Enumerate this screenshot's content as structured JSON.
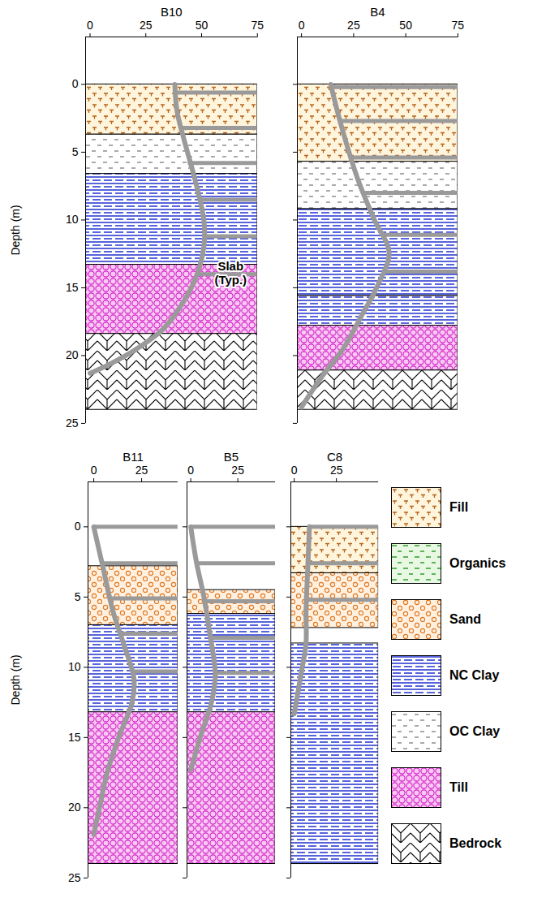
{
  "chart_data": [
    {
      "type": "borehole",
      "title": "B10",
      "xlim": [
        -2,
        75
      ],
      "xticks": [
        0,
        25,
        50,
        75
      ],
      "ylim": [
        -3.5,
        25
      ],
      "yticks": [
        0,
        5,
        10,
        15,
        20,
        25
      ],
      "ylabel": "Depth (m)",
      "layers": [
        {
          "soil": "Fill",
          "top": 0,
          "bottom": 3.7
        },
        {
          "soil": "OC Clay",
          "top": 3.7,
          "bottom": 6.6
        },
        {
          "soil": "NC Clay",
          "top": 6.6,
          "bottom": 13.3
        },
        {
          "soil": "Till",
          "top": 13.3,
          "bottom": 18.4
        },
        {
          "soil": "Bedrock",
          "top": 18.4,
          "bottom": 24
        }
      ],
      "curve": {
        "x": [
          38,
          39,
          42,
          47,
          51,
          51,
          48,
          42,
          33,
          20,
          8,
          0
        ],
        "depth": [
          0,
          2,
          4,
          7,
          10,
          12,
          14,
          16,
          18,
          19.6,
          20.7,
          21.3
        ]
      },
      "slabs": [
        {
          "depth": 0.6,
          "x": 38
        },
        {
          "depth": 3.2,
          "x": 40.5
        },
        {
          "depth": 5.8,
          "x": 44
        },
        {
          "depth": 8.5,
          "x": 49
        },
        {
          "depth": 11.2,
          "x": 51
        },
        {
          "depth": 14,
          "x": 48
        }
      ],
      "annotation": {
        "text": "Slab (Typ.)",
        "x": 63,
        "depth": 13.9
      }
    },
    {
      "type": "borehole",
      "title": "B4",
      "xlim": [
        -2,
        75
      ],
      "xticks": [
        0,
        25,
        50,
        75
      ],
      "ylim": [
        -3.5,
        25
      ],
      "yticks": [
        0,
        5,
        10,
        15,
        20,
        25
      ],
      "tick_labels": "x",
      "layers": [
        {
          "soil": "Fill",
          "top": 0,
          "bottom": 5.7
        },
        {
          "soil": "OC Clay",
          "top": 5.7,
          "bottom": 9.2
        },
        {
          "soil": "NC Clay",
          "top": 9.2,
          "bottom": 15.6
        },
        {
          "soil": "NC Clay",
          "top": 15.6,
          "bottom": 17.8
        },
        {
          "soil": "Till",
          "top": 17.8,
          "bottom": 21.1
        },
        {
          "soil": "Bedrock",
          "top": 21.1,
          "bottom": 24
        }
      ],
      "curve": {
        "x": [
          14,
          19,
          27,
          35,
          42,
          36,
          29,
          20,
          10,
          0
        ],
        "depth": [
          0,
          3,
          7,
          10,
          12.4,
          15,
          17,
          19.5,
          21.5,
          23.8
        ]
      },
      "slabs": [
        {
          "depth": 0.2,
          "x": 14
        },
        {
          "depth": 2.7,
          "x": 18.5
        },
        {
          "depth": 5.4,
          "x": 24
        },
        {
          "depth": 8,
          "x": 30
        },
        {
          "depth": 11.1,
          "x": 38.5
        },
        {
          "depth": 13.8,
          "x": 39
        }
      ]
    },
    {
      "type": "borehole",
      "title": "B11",
      "xlim": [
        -3,
        44
      ],
      "xticks": [
        0,
        25
      ],
      "ylim": [
        -3.2,
        25
      ],
      "yticks": [
        0,
        5,
        10,
        15,
        20,
        25
      ],
      "ylabel": "Depth (m)",
      "layers": [
        {
          "soil": "Sand",
          "top": 2.8,
          "bottom": 7
        },
        {
          "soil": "NC Clay",
          "top": 7,
          "bottom": 13.2
        },
        {
          "soil": "Till",
          "top": 13.2,
          "bottom": 24
        }
      ],
      "curve": {
        "x": [
          0,
          5,
          10,
          16,
          21,
          20,
          13,
          7,
          3,
          0
        ],
        "depth": [
          0,
          3,
          6,
          8.5,
          10.8,
          12.5,
          15,
          17.5,
          20,
          21.9
        ]
      },
      "slabs": [
        {
          "depth": 0,
          "x": 0
        },
        {
          "depth": 2.6,
          "x": 4.3
        },
        {
          "depth": 5.1,
          "x": 8.5
        },
        {
          "depth": 7.6,
          "x": 14
        },
        {
          "depth": 10.3,
          "x": 20.5
        }
      ]
    },
    {
      "type": "borehole",
      "title": "B5",
      "xlim": [
        -2,
        45
      ],
      "xticks": [
        0,
        25
      ],
      "ylim": [
        -3.2,
        25
      ],
      "yticks": [
        0,
        5,
        10,
        15,
        20,
        25
      ],
      "tick_labels": "x",
      "layers": [
        {
          "soil": "Sand",
          "top": 4.5,
          "bottom": 6.2
        },
        {
          "soil": "NC Clay",
          "top": 6.2,
          "bottom": 13.2
        },
        {
          "soil": "Till",
          "top": 13.2,
          "bottom": 24
        }
      ],
      "curve": {
        "x": [
          0,
          3,
          7,
          10,
          13,
          11,
          5,
          0
        ],
        "depth": [
          0,
          2.5,
          5,
          7.5,
          10.5,
          12.5,
          15,
          17.3
        ]
      },
      "slabs": [
        {
          "depth": 0,
          "x": 0
        },
        {
          "depth": 2.6,
          "x": 3
        },
        {
          "depth": 5.3,
          "x": 7.5
        },
        {
          "depth": 7.9,
          "x": 10.5
        },
        {
          "depth": 10.4,
          "x": 13
        }
      ]
    },
    {
      "type": "borehole",
      "title": "C8",
      "xlim": [
        -2,
        50
      ],
      "xticks": [
        0,
        25
      ],
      "ylim": [
        -3.2,
        25
      ],
      "yticks": [
        0,
        5,
        10,
        15,
        20,
        25
      ],
      "tick_labels": "x",
      "layers": [
        {
          "soil": "Fill",
          "top": 0,
          "bottom": 3.3
        },
        {
          "soil": "Sand",
          "top": 3.3,
          "bottom": 7.2
        },
        {
          "soil": "NC Clay",
          "top": 8.3,
          "bottom": 24
        }
      ],
      "curve": {
        "x": [
          9,
          8,
          7,
          7,
          4,
          0
        ],
        "depth": [
          0,
          3,
          6,
          8.3,
          10.5,
          13.3
        ]
      },
      "slabs": [
        {
          "depth": 0,
          "x": 9
        },
        {
          "depth": 2.6,
          "x": 8
        },
        {
          "depth": 5.2,
          "x": 7.3
        }
      ]
    }
  ],
  "soil_legend": [
    {
      "name": "Fill",
      "color": "#b5651d"
    },
    {
      "name": "Organics",
      "color": "#2e9e2e"
    },
    {
      "name": "Sand",
      "color": "#e07820"
    },
    {
      "name": "NC Clay",
      "color": "#1f2fd0"
    },
    {
      "name": "OC Clay",
      "color": "#555555"
    },
    {
      "name": "Till",
      "color": "#d21fc8"
    },
    {
      "name": "Bedrock",
      "color": "#000000"
    }
  ]
}
